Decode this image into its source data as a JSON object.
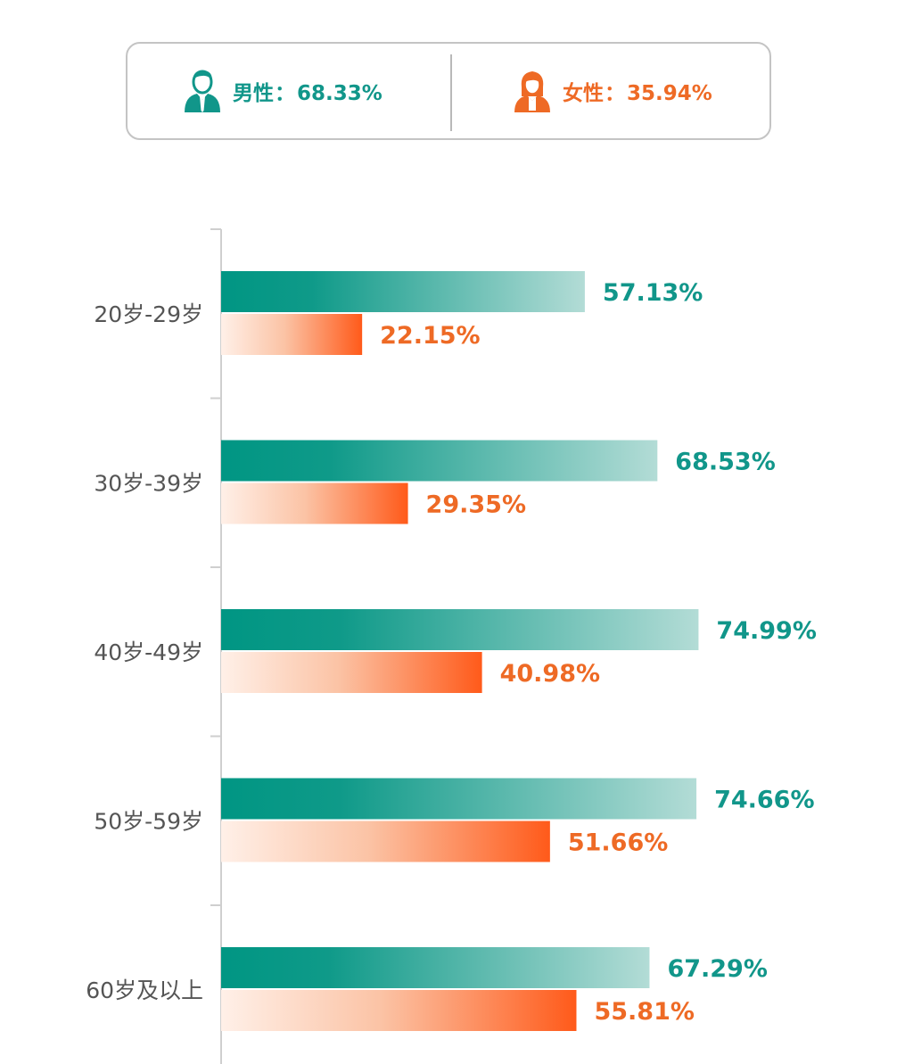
{
  "legend": {
    "male": {
      "label": "男性",
      "separator": "：",
      "value": "68.33%",
      "icon": "male-user-icon",
      "color": "#11968a"
    },
    "female": {
      "label": "女性",
      "separator": "：",
      "value": "35.94%",
      "icon": "female-user-icon",
      "color": "#ee6a25"
    }
  },
  "chart_data": {
    "type": "bar",
    "orientation": "horizontal",
    "categories": [
      "20岁-29岁",
      "30岁-39岁",
      "40岁-49岁",
      "50岁-59岁",
      "60岁及以上"
    ],
    "series": [
      {
        "name": "男性",
        "values": [
          57.13,
          68.53,
          74.99,
          74.66,
          67.29
        ],
        "color": "#009683"
      },
      {
        "name": "女性",
        "values": [
          22.15,
          29.35,
          40.98,
          51.66,
          55.81
        ],
        "color": "#ff5a1a"
      }
    ],
    "value_suffix": "%",
    "xlim": [
      0,
      100
    ],
    "grid": false,
    "legend_position": "top"
  }
}
